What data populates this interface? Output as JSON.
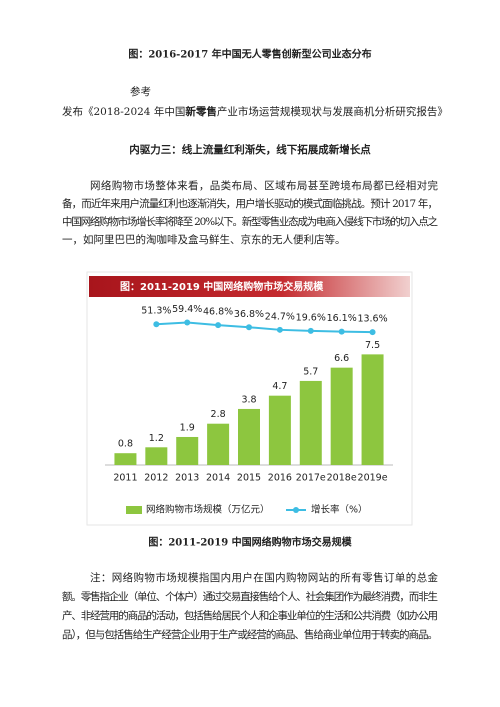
{
  "document": {
    "heading": "图：2016-2017 年中国无人零售创新型公司业态分布",
    "reference_label": "参考",
    "reference": [
      "发布《2018-2024 年中国",
      "新零售",
      "产业市场运营规模现状与发展商机分析研究报告》"
    ],
    "section_title": "内驱力三：线上流量红利渐失，线下拓展成新增长点",
    "paragraph": [
      "网络购物市场整体来看，品类布局、区域布局甚至跨境布局都已经相对完",
      "备，而近年来用户流量红利也逐渐消失，用户增长驱动的模式面临挑战。预计 2017 年，",
      "中国网络购物市场增长率将降至 20%以下。新型零售业态成为电商入侵线下市场的切入点之",
      "一，如阿里巴巴的淘咖啡及盒马鲜生、京东的无人便利店等。"
    ],
    "caption": "图：2011-2019 中国网络购物市场交易规模",
    "note": [
      "注：网络购物市场规模指国内用户在国内购物网站的所有零售订单的总金",
      "额。零售指企业（单位、个体户）通过交易直接售给个人、社会集团作为最终消费，而非生",
      "产、非经营用的商品的活动，包括售给居民个人和企事业单位的生活和公共消费（如办公用",
      "品），但与包括售给生产经营企业用于生产或经营的商品、售给商业单位用于转卖的商品。"
    ]
  },
  "chart_data": {
    "type": "bar",
    "title": "图：2011-2019 中国网络购物市场交易规模",
    "categories": [
      "2011",
      "2012",
      "2013",
      "2014",
      "2015",
      "2016",
      "2017e",
      "2018e",
      "2019e"
    ],
    "series": [
      {
        "name": "网络购物市场规模（万亿元）",
        "color": "#8dc63f",
        "values": [
          0.8,
          1.2,
          1.9,
          2.8,
          3.8,
          4.7,
          5.7,
          6.6,
          7.5
        ]
      },
      {
        "name": "增长率（%）",
        "color": "#3dbde3",
        "type": "line",
        "axis": "y2",
        "values": [
          null,
          51.3,
          59.4,
          46.8,
          36.8,
          24.7,
          19.6,
          16.1,
          13.6
        ],
        "value_labels": [
          null,
          "51.3%",
          "59.4%",
          "46.8%",
          "36.8%",
          "24.7%",
          "19.6%",
          "16.1%",
          "13.6%"
        ]
      }
    ],
    "ylim": [
      0,
      8
    ],
    "y2lim": [
      0,
      100
    ]
  }
}
